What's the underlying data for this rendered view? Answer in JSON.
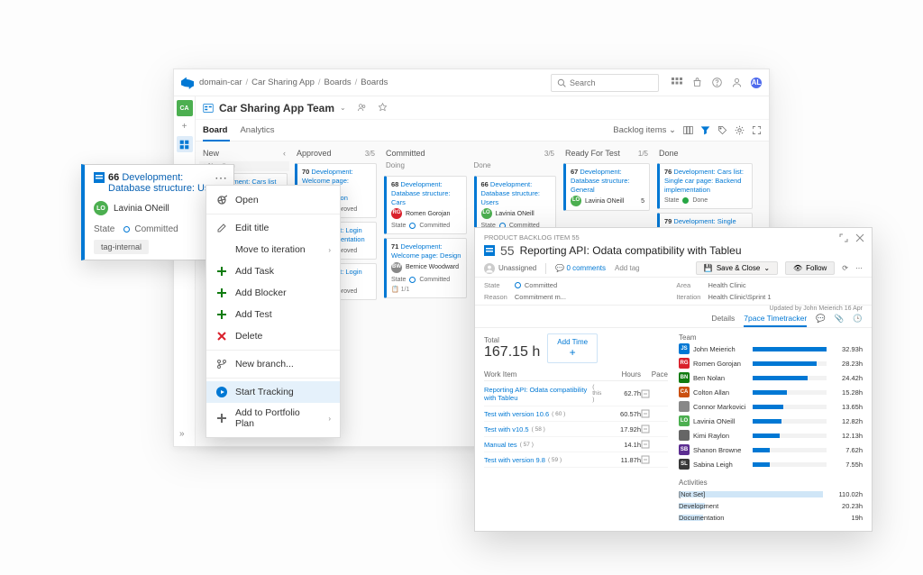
{
  "colors": {
    "primary": "#0078d4",
    "green": "#107c10",
    "red": "#d9212c",
    "avatar_user": "#4f6bed"
  },
  "topbar": {
    "breadcrumbs": [
      "domain-car",
      "Car Sharing App",
      "Boards",
      "Boards"
    ],
    "search_placeholder": "Search",
    "user_initials": "AL",
    "user_color": "#4f6bed"
  },
  "team_header": {
    "name": "Car Sharing App Team"
  },
  "tabs": {
    "items": [
      "Board",
      "Analytics"
    ],
    "active": 0,
    "backlog_label": "Backlog items"
  },
  "board": {
    "columns": [
      {
        "name": "New",
        "count": "",
        "chev": true
      },
      {
        "name": "Approved",
        "count": "3/5"
      },
      {
        "name": "Committed",
        "count": "3/5",
        "split": [
          "Doing",
          "Done"
        ]
      },
      {
        "name": "Ready For Test",
        "count": "1/5"
      },
      {
        "name": "Done",
        "count": ""
      }
    ],
    "cards": {
      "new": [
        {
          "id": "",
          "title": "Development: Cars list implementation",
          "state": ""
        }
      ],
      "approved": [
        {
          "id": "70",
          "title": "Development: Welcome page: Backend implementation",
          "state": "Approved"
        },
        {
          "id": "",
          "title": "Development: Login page implementation",
          "state": "Approved"
        },
        {
          "id": "",
          "title": "Development: Login page",
          "state": "Approved"
        }
      ],
      "committed_doing": [
        {
          "id": "68",
          "title": "Development: Database structure: Cars",
          "person": "Romen Gorojan",
          "person_color": "#d9212c",
          "state": "Committed"
        },
        {
          "id": "71",
          "title": "Development: Welcome page: Design",
          "person": "Bernice Woodward",
          "person_color": "#888",
          "state": "Committed",
          "ratio": "1/1"
        }
      ],
      "committed_done": [
        {
          "id": "66",
          "title": "Development: Database structure: Users",
          "person": "Lavinia ONeill",
          "person_color": "#4caf50",
          "state": "Committed",
          "tag": "tag-internal"
        }
      ],
      "ready": [
        {
          "id": "67",
          "title": "Development: Database structure: General",
          "person": "Lavinia ONeill",
          "person_color": "#4caf50",
          "effort": "5"
        }
      ],
      "done": [
        {
          "id": "76",
          "title": "Development: Cars list: Single car page: Backend implementation",
          "state": "Done"
        },
        {
          "id": "79",
          "title": "Development: Single car page: Booking details: Design",
          "state": "Done"
        }
      ]
    }
  },
  "popout_card": {
    "type_icon_color": "#0078d4",
    "id": "66",
    "title": "Development: Database structure: Users",
    "title_truncated": "Development: Databa",
    "person": "Lavinia ONeill",
    "person_initials": "LO",
    "person_color": "#4caf50",
    "state_label": "State",
    "state": "Committed",
    "tag": "tag-internal"
  },
  "context_menu": {
    "items": [
      {
        "label": "Open",
        "icon": "open"
      },
      {
        "label": "Edit title",
        "icon": "edit",
        "sep_before": true
      },
      {
        "label": "Move to iteration",
        "icon": null,
        "submenu": true
      },
      {
        "label": "Add Task",
        "icon": "plus",
        "icon_color": "green"
      },
      {
        "label": "Add Blocker",
        "icon": "plus",
        "icon_color": "green"
      },
      {
        "label": "Add Test",
        "icon": "plus",
        "icon_color": "green"
      },
      {
        "label": "Delete",
        "icon": "x",
        "icon_color": "red"
      },
      {
        "label": "New branch...",
        "icon": "branch",
        "sep_before": true
      },
      {
        "label": "Start Tracking",
        "icon": "play",
        "icon_color": "blue",
        "selected": true,
        "sep_before": true
      },
      {
        "label": "Add to Portfolio Plan",
        "icon": "plus",
        "submenu": true
      }
    ]
  },
  "dialog": {
    "breadcrumb": "PRODUCT BACKLOG ITEM 55",
    "id": "55",
    "title": "Reporting API: Odata compatibility with Tableu",
    "assigned": "Unassigned",
    "comments": "0 comments",
    "add_tag": "Add tag",
    "save_btn": "Save & Close",
    "follow_btn": "Follow",
    "fields": {
      "state_label": "State",
      "state": "Committed",
      "area_label": "Area",
      "area": "Health Clinic",
      "reason_label": "Reason",
      "reason": "Commitment m...",
      "iteration_label": "Iteration",
      "iteration": "Health Clinic\\Sprint 1"
    },
    "updated": "Updated by John Meierich 16 Apr",
    "tabs": [
      "Details",
      "7pace Timetracker"
    ],
    "active_tab": 1,
    "total_label": "Total",
    "total_hours": "167.15 h",
    "add_time": "Add Time",
    "work_item_header": {
      "c1": "Work Item",
      "c2": "Hours",
      "c3": "Pace"
    },
    "work_items": [
      {
        "title": "Reporting API: Odata compatibility with Tableu",
        "suffix": "( this )",
        "hours": "62.7h"
      },
      {
        "title": "Test with version 10.6",
        "suffix": "( 60 )",
        "hours": "60.57h"
      },
      {
        "title": "Test with v10.5",
        "suffix": "( 58 )",
        "hours": "17.92h"
      },
      {
        "title": "Manual tes",
        "suffix": "( 57 )",
        "hours": "14.1h"
      },
      {
        "title": "Test with version 9.8",
        "suffix": "( 59 )",
        "hours": "11.87h"
      }
    ],
    "team_header": "Team",
    "team_max": 32.93,
    "team": [
      {
        "initials": "JS",
        "color": "#0078d4",
        "name": "John Meierich",
        "hours": 32.93
      },
      {
        "initials": "RG",
        "color": "#d9212c",
        "name": "Romen Gorojan",
        "hours": 28.23
      },
      {
        "initials": "BN",
        "color": "#107c10",
        "name": "Ben Nolan",
        "hours": 24.42
      },
      {
        "initials": "CA",
        "color": "#ca5010",
        "name": "Colton Allan",
        "hours": 15.28
      },
      {
        "initials": "",
        "color": "#888",
        "name": "Connor Markovici",
        "hours": 13.65,
        "img": true
      },
      {
        "initials": "LO",
        "color": "#4caf50",
        "name": "Lavinia ONeill",
        "hours": 12.82
      },
      {
        "initials": "",
        "color": "#666",
        "name": "Kimi Raylon",
        "hours": 12.13,
        "img": true
      },
      {
        "initials": "SB",
        "color": "#5c2e91",
        "name": "Shanon Browne",
        "hours": 7.62
      },
      {
        "initials": "SL",
        "color": "#393939",
        "name": "Sabina Leigh",
        "hours": 7.55
      }
    ],
    "activities_label": "Activities",
    "activities_max": 110.02,
    "activities": [
      {
        "name": "[Not Set]",
        "hours": "110.02h",
        "w": 100
      },
      {
        "name": "Development",
        "hours": "20.23h",
        "w": 18
      },
      {
        "name": "Documentation",
        "hours": "19h",
        "w": 17
      }
    ]
  }
}
